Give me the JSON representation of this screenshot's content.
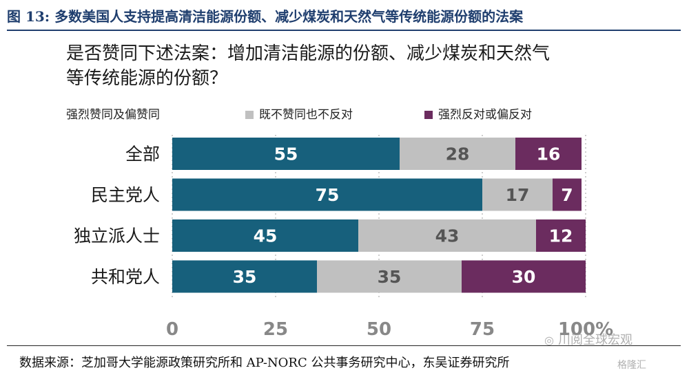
{
  "figure_title": "图 13:  多数美国人支持提高清洁能源份额、减少煤炭和天然气等传统能源份额的法案",
  "chart_data": {
    "type": "bar",
    "orientation": "horizontal",
    "stacked": true,
    "title_line1": "是否赞同下述法案：增加清洁能源的份额、减少煤炭和天然气",
    "title_line2": "等传统能源的份额？",
    "categories": [
      "全部",
      "民主党人",
      "独立派人士",
      "共和党人"
    ],
    "series": [
      {
        "name": "强烈赞同及偏赞同",
        "color": "#17607c",
        "values": [
          55,
          75,
          45,
          35
        ]
      },
      {
        "name": "既不赞同也不反对",
        "color": "#c0c0c0",
        "values": [
          28,
          17,
          43,
          35
        ]
      },
      {
        "name": "强烈反对或偏反对",
        "color": "#6b2c5f",
        "values": [
          16,
          7,
          12,
          30
        ]
      }
    ],
    "xlim": [
      0,
      100
    ],
    "x_ticks": [
      "0",
      "25",
      "50",
      "75",
      "100%"
    ],
    "grid": "vertical dotted",
    "legend_position": "top"
  },
  "source": "数据来源：芝加哥大学能源政策研究所和 AP-NORC 公共事务研究中心，东吴证券研究所",
  "watermark": {
    "text": "川阅全球宏观",
    "icon": "wechat-icon",
    "text2": "格隆汇"
  }
}
